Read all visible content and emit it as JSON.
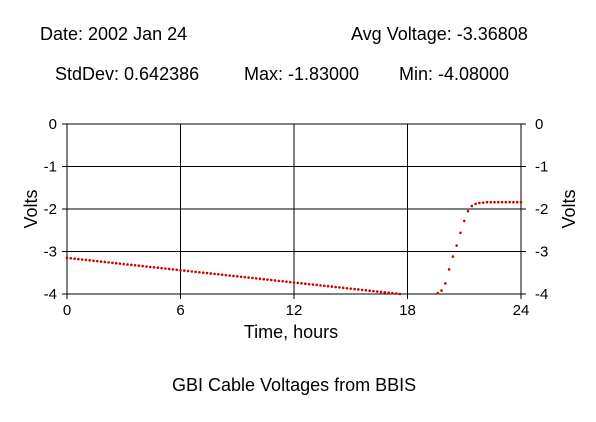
{
  "header": {
    "date": "Date: 2002 Jan 24",
    "avg": "Avg Voltage: -3.36808",
    "stddev": "StdDev: 0.642386",
    "max": "Max: -1.83000",
    "min": "Min: -4.08000"
  },
  "footer": {
    "caption": "GBI Cable Voltages from BBIS"
  },
  "colors": {
    "points": "#cc0000",
    "axes": "#000000",
    "grid": "#000000"
  },
  "chart_data": {
    "type": "scatter",
    "title": "",
    "xlabel": "Time, hours",
    "ylabel": "Volts",
    "y2label": "Volts",
    "xlim": [
      0,
      24
    ],
    "ylim": [
      -4,
      0
    ],
    "xticks": [
      0,
      6,
      12,
      18,
      24
    ],
    "yticks": [
      0,
      -1,
      -2,
      -3,
      -4
    ],
    "grid": true,
    "series": [
      {
        "name": "",
        "segments": [
          {
            "x_start": 0.0,
            "x_end": 17.6,
            "step": 0.2,
            "y_start": -3.15,
            "y_end": -4.0
          },
          {
            "points": [
              [
                19.6,
                -3.98
              ],
              [
                19.8,
                -3.92
              ],
              [
                20.0,
                -3.75
              ],
              [
                20.2,
                -3.42
              ],
              [
                20.4,
                -3.12
              ],
              [
                20.6,
                -2.86
              ],
              [
                20.8,
                -2.56
              ],
              [
                21.0,
                -2.28
              ],
              [
                21.2,
                -2.05
              ],
              [
                21.4,
                -1.93
              ],
              [
                21.6,
                -1.88
              ],
              [
                21.8,
                -1.86
              ],
              [
                22.0,
                -1.85
              ],
              [
                22.2,
                -1.84
              ],
              [
                22.4,
                -1.84
              ],
              [
                22.6,
                -1.84
              ],
              [
                22.8,
                -1.84
              ],
              [
                23.0,
                -1.84
              ],
              [
                23.2,
                -1.84
              ],
              [
                23.4,
                -1.84
              ],
              [
                23.6,
                -1.84
              ],
              [
                23.8,
                -1.84
              ],
              [
                24.0,
                -1.84
              ]
            ]
          }
        ]
      }
    ]
  }
}
